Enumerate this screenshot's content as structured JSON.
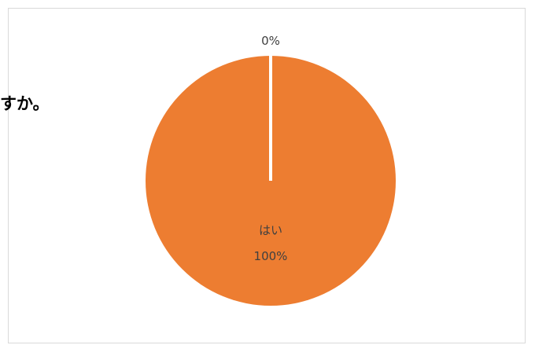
{
  "question_fragment": "すか。",
  "chart_data": {
    "type": "pie",
    "title": "",
    "slices": [
      {
        "name": "はい",
        "value": 100,
        "label": "100%",
        "color": "#ED7D31"
      },
      {
        "name": "",
        "value": 0,
        "label": "0%",
        "color": "#4472C4"
      }
    ]
  }
}
